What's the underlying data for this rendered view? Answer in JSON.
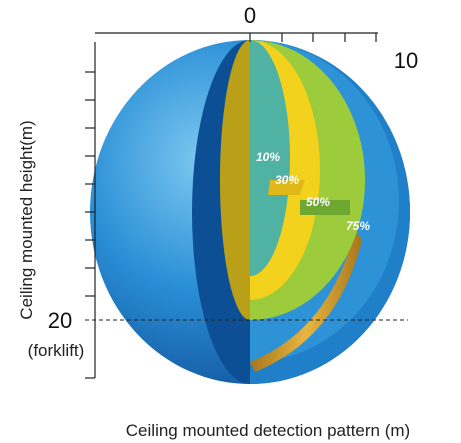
{
  "axes": {
    "top_start": "0",
    "top_end": "10",
    "left_mark": "20",
    "left_mark_note": "(forklift)",
    "y_label": "Ceiling mounted height(m)",
    "x_label": "Ceiling mounted detection pattern (m)"
  },
  "zones": [
    {
      "label": "10%"
    },
    {
      "label": "30%"
    },
    {
      "label": "50%"
    },
    {
      "label": "75%"
    }
  ]
}
